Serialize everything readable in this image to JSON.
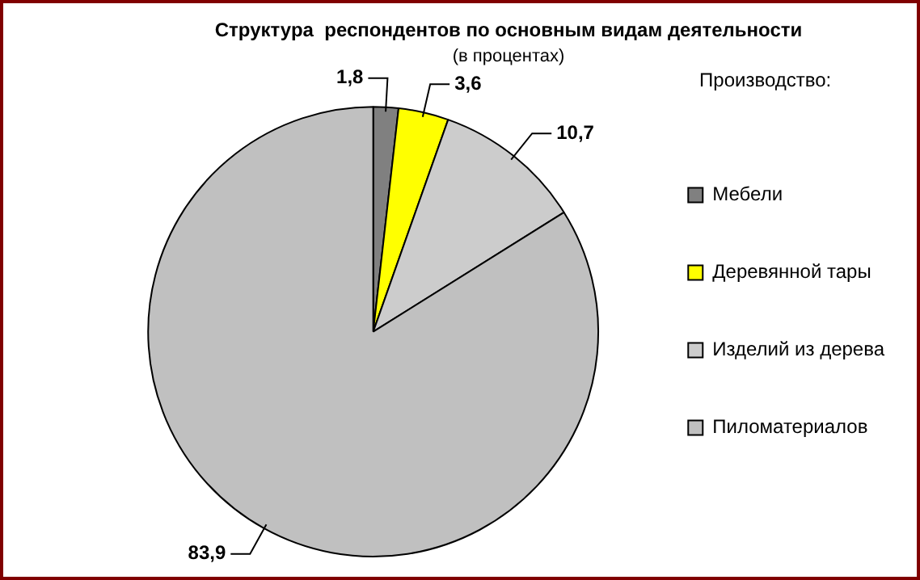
{
  "chart_data": {
    "type": "pie",
    "title": "Структура  респондентов по основным видам деятельности",
    "subtitle": "(в процентах)",
    "legend_title": "Производство:",
    "legend": "right",
    "categories": [
      "Мебели",
      "Деревянной тары",
      "Изделий из дерева",
      "Пиломатериалов"
    ],
    "values": [
      1.8,
      3.6,
      10.7,
      83.9
    ],
    "value_labels": [
      "1,8",
      "3,6",
      "10,7",
      "83,9"
    ],
    "colors": [
      "#808080",
      "#ffff00",
      "#cccccc",
      "#c0c0c0"
    ]
  }
}
